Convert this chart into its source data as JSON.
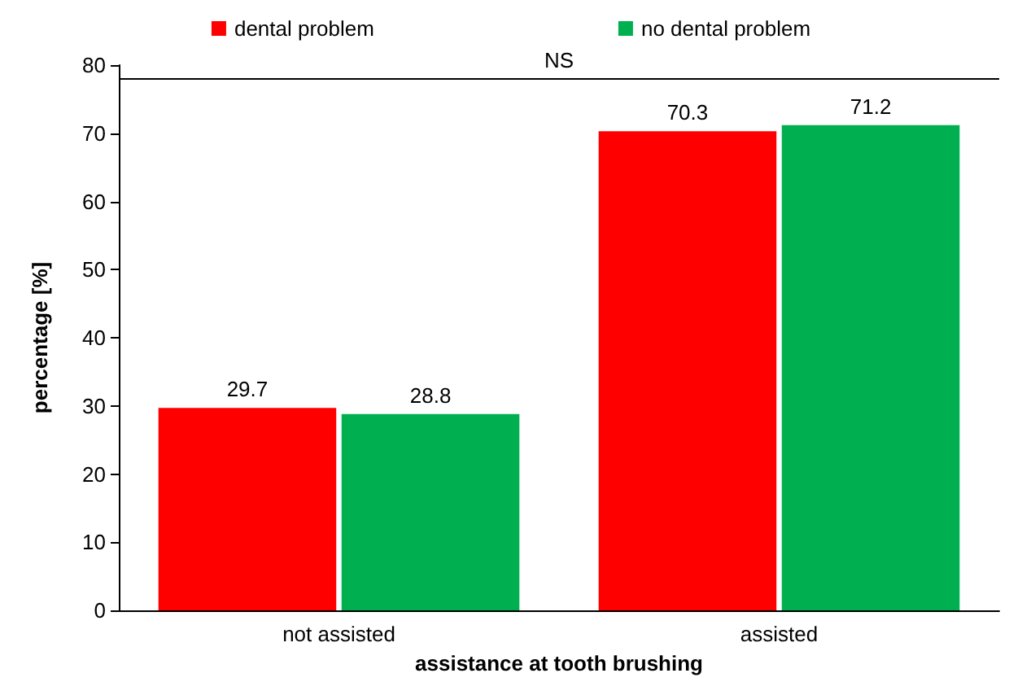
{
  "chart_data": {
    "type": "bar",
    "xlabel": "assistance at tooth brushing",
    "ylabel": "percentage [%]",
    "categories": [
      "not assisted",
      "assisted"
    ],
    "series": [
      {
        "name": "dental problem",
        "color": "#ff0000",
        "values": [
          29.7,
          70.3
        ]
      },
      {
        "name": "no dental problem",
        "color": "#00b050",
        "values": [
          28.8,
          71.2
        ]
      }
    ],
    "ylim": [
      0,
      80
    ],
    "yticks": [
      0,
      10,
      20,
      30,
      40,
      50,
      60,
      70,
      80
    ],
    "grid": false,
    "legend": "top",
    "data_labels": true,
    "ref_lines": [
      {
        "axis": "y",
        "value": 78,
        "label": "NS"
      }
    ]
  }
}
